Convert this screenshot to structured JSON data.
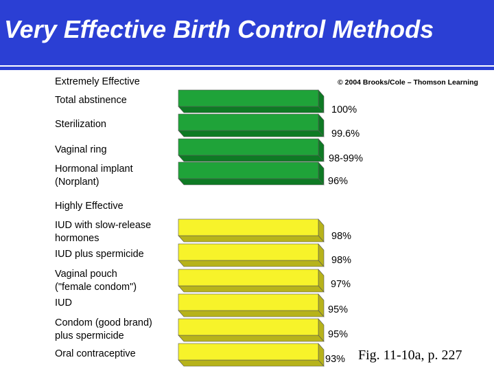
{
  "slide": {
    "title": "Very Effective Birth Control Methods",
    "copyright": "© 2004 Brooks/Cole – Thomson Learning",
    "figure_ref": "Fig. 11-10a, p. 227"
  },
  "colors": {
    "header": "#2b3fd4",
    "extremely_effective_bar": "#1fa339",
    "highly_effective_bar": "#f7f32a"
  },
  "chart_data": {
    "type": "bar",
    "orientation": "horizontal",
    "groups": [
      {
        "name": "Extremely Effective",
        "items": [
          {
            "label": "Total abstinence",
            "value_label": "100%",
            "value": 100
          },
          {
            "label": "Sterilization",
            "value_label": "99.6%",
            "value": 99.6
          },
          {
            "label": "Vaginal ring",
            "value_label": "98-99%",
            "value": 98.5
          },
          {
            "label": "Hormonal implant\n(Norplant)",
            "value_label": "96%",
            "value": 96
          }
        ]
      },
      {
        "name": "Highly Effective",
        "items": [
          {
            "label": "IUD with slow-release\nhormones",
            "value_label": "98%",
            "value": 98
          },
          {
            "label": "IUD plus spermicide",
            "value_label": "98%",
            "value": 98
          },
          {
            "label": "Vaginal pouch\n(\"female condom\")",
            "value_label": "97%",
            "value": 97
          },
          {
            "label": "IUD",
            "value_label": "95%",
            "value": 95
          },
          {
            "label": "Condom (good brand)\nplus spermicide",
            "value_label": "95%",
            "value": 95
          },
          {
            "label": "Oral contraceptive",
            "value_label": "93%",
            "value": 93
          }
        ]
      }
    ]
  }
}
